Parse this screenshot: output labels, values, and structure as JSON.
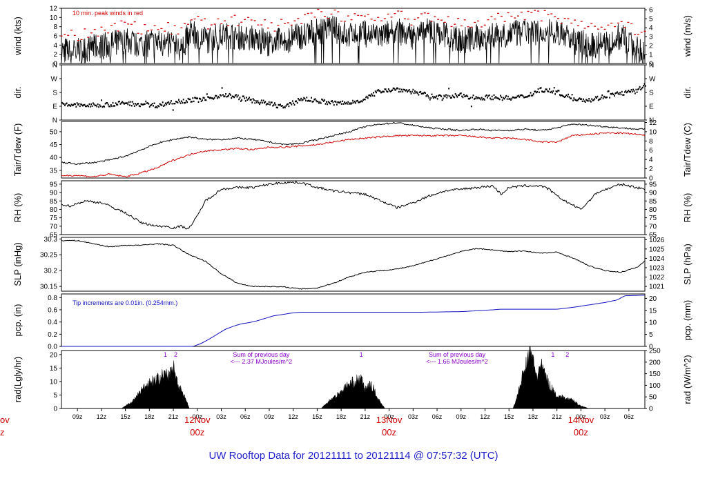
{
  "title": "UW Rooftop Data for 20121111  to  20121114 @ 07:57:32  (UTC)",
  "colors": {
    "text": "#000000",
    "red": "#d00000",
    "blue": "#1010c0",
    "purple": "#8a00c8",
    "title": "#2222cc"
  },
  "x_axis": {
    "unit": "hours since 2012-11-11 07:00Z",
    "range": [
      0,
      73
    ],
    "ticks": [
      {
        "h": 2,
        "label": "09z"
      },
      {
        "h": 5,
        "label": "12z"
      },
      {
        "h": 8,
        "label": "15z"
      },
      {
        "h": 11,
        "label": "18z"
      },
      {
        "h": 14,
        "label": "21z"
      },
      {
        "h": 17,
        "label": "00z"
      },
      {
        "h": 20,
        "label": "03z"
      },
      {
        "h": 23,
        "label": "06z"
      },
      {
        "h": 26,
        "label": "09z"
      },
      {
        "h": 29,
        "label": "12z"
      },
      {
        "h": 32,
        "label": "15z"
      },
      {
        "h": 35,
        "label": "18z"
      },
      {
        "h": 38,
        "label": "21z"
      },
      {
        "h": 41,
        "label": "00z"
      },
      {
        "h": 44,
        "label": "03z"
      },
      {
        "h": 47,
        "label": "06z"
      },
      {
        "h": 50,
        "label": "09z"
      },
      {
        "h": 53,
        "label": "12z"
      },
      {
        "h": 56,
        "label": "15z"
      },
      {
        "h": 59,
        "label": "18z"
      },
      {
        "h": 62,
        "label": "21z"
      },
      {
        "h": 65,
        "label": "00z"
      },
      {
        "h": 68,
        "label": "03z"
      },
      {
        "h": 71,
        "label": "06z"
      }
    ],
    "day_labels": [
      {
        "h": 17,
        "date": "12Nov",
        "time": "00z"
      },
      {
        "h": 41,
        "date": "13Nov",
        "time": "00z"
      },
      {
        "h": 65,
        "date": "14Nov",
        "time": "00z"
      }
    ],
    "edge_label": {
      "date": "ov",
      "time": "z"
    }
  },
  "chart_data": [
    {
      "type": "line",
      "name": "wind",
      "ylabel_left": "wind (kts)",
      "ylabel_right": "wind (m/s)",
      "ylim": [
        0,
        12
      ],
      "left_ticks": [
        0,
        2,
        4,
        6,
        8,
        10,
        12
      ],
      "right_ticks": [
        0,
        1,
        2,
        3,
        4,
        5,
        6
      ],
      "right_factor": 0.5144,
      "annotation": "10 min. peak winds in red",
      "knots_x": [
        0,
        2,
        4,
        6,
        8,
        10,
        12,
        14,
        15,
        16,
        17,
        18,
        20,
        22,
        24,
        26,
        28,
        30,
        32,
        34,
        36,
        38,
        40,
        42,
        44,
        46,
        48,
        50,
        52,
        54,
        56,
        58,
        60,
        62,
        64,
        66,
        68,
        70,
        72,
        73
      ],
      "knots_y": [
        3,
        2.5,
        3.5,
        4,
        5,
        4,
        4.5,
        4,
        3,
        6.5,
        6,
        5,
        6,
        6,
        5.5,
        4.5,
        5,
        6,
        7,
        7.5,
        6,
        6.5,
        6,
        7,
        6,
        7,
        6,
        5,
        5.5,
        6,
        6.5,
        6.5,
        7,
        7,
        5,
        4,
        4,
        6,
        3,
        2.5
      ],
      "peak_over_mean": 3
    },
    {
      "type": "scatter",
      "name": "dir",
      "ylabel_left": "dir.",
      "ylabel_right": "dir.",
      "ylim": [
        0,
        360
      ],
      "tick_values": [
        0,
        90,
        180,
        270,
        360
      ],
      "tick_labels": [
        "N",
        "E",
        "S",
        "W",
        "N"
      ],
      "knots_x": [
        0,
        4,
        8,
        12,
        14,
        16,
        18,
        20,
        22,
        24,
        26,
        28,
        30,
        32,
        34,
        36,
        38,
        40,
        42,
        44,
        46,
        48,
        50,
        52,
        54,
        56,
        58,
        60,
        62,
        64,
        66,
        68,
        70,
        72,
        73
      ],
      "knots_y": [
        100,
        95,
        110,
        95,
        120,
        130,
        135,
        165,
        150,
        125,
        105,
        85,
        140,
        125,
        110,
        110,
        140,
        195,
        200,
        185,
        155,
        150,
        160,
        145,
        150,
        140,
        155,
        200,
        180,
        140,
        130,
        155,
        175,
        190,
        230
      ]
    },
    {
      "type": "line",
      "name": "temperature",
      "ylabel_left": "Tair/Tdew (F)",
      "ylabel_right": "Tair/Tdew (C)",
      "ylim": [
        32,
        54
      ],
      "left_ticks": [
        35,
        40,
        45,
        50
      ],
      "right_ticks": [
        0,
        2,
        4,
        6,
        8,
        10,
        12
      ],
      "series": [
        {
          "name": "Tair",
          "x": [
            0,
            2,
            4,
            6,
            8,
            10,
            12,
            14,
            16,
            17,
            18,
            20,
            22,
            24,
            26,
            28,
            30,
            32,
            34,
            36,
            38,
            40,
            42,
            44,
            46,
            48,
            50,
            52,
            54,
            56,
            58,
            60,
            62,
            64,
            66,
            68,
            70,
            72,
            73
          ],
          "y": [
            38,
            37.5,
            38,
            39,
            40.5,
            43,
            45.5,
            47,
            48,
            47.5,
            47,
            47,
            47.5,
            47,
            46,
            45,
            45.5,
            47,
            48.5,
            50,
            52,
            53,
            53.5,
            52.5,
            51.5,
            51,
            50.5,
            51,
            50.5,
            50.5,
            51,
            50.5,
            51.5,
            53,
            52.5,
            52,
            51.5,
            51,
            51
          ]
        },
        {
          "name": "Tdew",
          "x": [
            0,
            2,
            4,
            6,
            8,
            10,
            12,
            14,
            16,
            17,
            18,
            20,
            22,
            24,
            26,
            28,
            30,
            32,
            34,
            36,
            38,
            40,
            42,
            44,
            46,
            48,
            50,
            52,
            54,
            56,
            58,
            60,
            62,
            64,
            66,
            68,
            70,
            72,
            73
          ],
          "y": [
            33,
            33,
            32.5,
            33.5,
            32.5,
            34,
            36,
            39,
            41,
            42,
            42.5,
            43,
            43.5,
            43,
            44,
            44,
            44.5,
            45,
            46,
            47,
            47.5,
            48,
            48.5,
            48.5,
            48.5,
            48.5,
            48.5,
            48,
            47.5,
            47.5,
            47,
            46,
            46,
            48.5,
            49,
            49.5,
            49.5,
            49,
            48.5
          ]
        }
      ]
    },
    {
      "type": "line",
      "name": "rh",
      "ylabel_left": "RH (%)",
      "ylabel_right": "RH (%)",
      "ylim": [
        65,
        97
      ],
      "left_ticks": [
        65,
        70,
        75,
        80,
        85,
        90,
        95
      ],
      "x": [
        0,
        1,
        3,
        5,
        6,
        8,
        10,
        11,
        12,
        13,
        14,
        15,
        15.5,
        16,
        17,
        18,
        20,
        22,
        24,
        26,
        28,
        30,
        32,
        34,
        36,
        38,
        40,
        42,
        44,
        46,
        48,
        50,
        52,
        54,
        55,
        56,
        58,
        60,
        61,
        62,
        63,
        65,
        67,
        70,
        73
      ],
      "y": [
        83,
        82,
        85,
        84,
        82,
        78,
        72,
        71,
        70,
        70,
        69,
        70,
        69,
        69,
        76,
        85,
        92,
        93,
        93,
        95,
        96,
        96,
        93,
        91,
        90,
        89,
        85,
        81,
        84,
        88,
        91,
        92,
        93,
        94,
        89,
        93,
        94,
        94,
        92,
        88,
        85,
        80,
        90,
        95,
        92
      ]
    },
    {
      "type": "line",
      "name": "slp",
      "ylabel_left": "SLP (inHg)",
      "ylabel_right": "SLP (hPa)",
      "ylim": [
        30.135,
        30.305
      ],
      "left_ticks": [
        30.15,
        30.2,
        30.25,
        30.3
      ],
      "right_ticks": [
        1021,
        1022,
        1023,
        1024,
        1025,
        1026
      ],
      "x": [
        0,
        2,
        4,
        6,
        8,
        10,
        12,
        14,
        16,
        18,
        20,
        22,
        24,
        26,
        28,
        30,
        32,
        34,
        36,
        38,
        40,
        42,
        44,
        46,
        48,
        50,
        52,
        54,
        56,
        58,
        60,
        62,
        64,
        66,
        68,
        70,
        72,
        73
      ],
      "y": [
        30.295,
        30.295,
        30.285,
        30.275,
        30.28,
        30.28,
        30.285,
        30.28,
        30.25,
        30.23,
        30.19,
        30.16,
        30.15,
        30.15,
        30.148,
        30.142,
        30.145,
        30.16,
        30.18,
        30.195,
        30.2,
        30.205,
        30.215,
        30.23,
        30.245,
        30.26,
        30.27,
        30.265,
        30.26,
        30.262,
        30.255,
        30.258,
        30.24,
        30.215,
        30.2,
        30.195,
        30.21,
        30.23
      ]
    },
    {
      "type": "line",
      "name": "pcp",
      "ylabel_left": "pcp. (in)",
      "ylabel_right": "pcp. (mm)",
      "ylim": [
        0,
        0.86
      ],
      "left_ticks": [
        0.0,
        0.2,
        0.4,
        0.6,
        0.8
      ],
      "left_tick_labels": [
        "0.0",
        "0.2",
        "0.4",
        "0.6",
        "0.8"
      ],
      "right_ticks": [
        0,
        5,
        10,
        15,
        20
      ],
      "annotation": "Tip increments are 0.01in. (0.254mm.)",
      "x": [
        0,
        16.5,
        17.5,
        18.5,
        19.5,
        20.5,
        21.5,
        22.5,
        23.5,
        24.5,
        25.5,
        26.5,
        27.5,
        29,
        30,
        31,
        33,
        40,
        45,
        50,
        54,
        55,
        58,
        61,
        62,
        64,
        66,
        68,
        69.5,
        70.5,
        73
      ],
      "y": [
        0,
        0,
        0.05,
        0.12,
        0.2,
        0.28,
        0.33,
        0.37,
        0.39,
        0.42,
        0.46,
        0.5,
        0.52,
        0.55,
        0.56,
        0.56,
        0.56,
        0.56,
        0.56,
        0.57,
        0.6,
        0.61,
        0.61,
        0.61,
        0.61,
        0.64,
        0.68,
        0.72,
        0.76,
        0.83,
        0.84
      ]
    },
    {
      "type": "area",
      "name": "rad",
      "ylabel_left": "rad(Lgly/hr)",
      "ylabel_right": "rad (W/m^2)",
      "ylim": [
        0,
        21.5
      ],
      "left_ticks": [
        0,
        5,
        10,
        15,
        20
      ],
      "right_ticks": [
        0,
        50,
        100,
        150,
        200,
        250
      ],
      "right_factor": 11.63,
      "markers": [
        {
          "h": 13,
          "label": "1"
        },
        {
          "h": 14.3,
          "label": "2"
        },
        {
          "h": 37.5,
          "label": "1"
        },
        {
          "h": 61.5,
          "label": "1"
        },
        {
          "h": 63.3,
          "label": "2"
        }
      ],
      "notes": [
        {
          "h": 25,
          "line1": "Sum of previous day",
          "line2": "<--- 2.37 MJoules/m^2"
        },
        {
          "h": 49.5,
          "line1": "Sum of previous day",
          "line2": "<--- 1.66 MJoules/m^2"
        }
      ],
      "days": [
        {
          "x": [
            7.5,
            9,
            10,
            11,
            12,
            13,
            13.5,
            14,
            14.5,
            15,
            15.5,
            16
          ],
          "y": [
            0,
            3,
            7,
            10,
            11,
            13,
            12,
            16,
            10,
            7,
            4,
            0
          ]
        },
        {
          "x": [
            32.5,
            33.5,
            34.5,
            35.5,
            36.5,
            37.5,
            38,
            38.5,
            39,
            39.5,
            40,
            40.5
          ],
          "y": [
            0,
            3,
            5,
            8,
            10,
            11,
            7,
            9,
            8,
            4,
            2,
            0
          ]
        },
        {
          "x": [
            56.5,
            57,
            57.5,
            58,
            58.5,
            59,
            59.5,
            60,
            60.5,
            61,
            61.5,
            62,
            63,
            64,
            65,
            66
          ],
          "y": [
            0,
            4,
            10,
            15,
            20,
            19,
            12,
            16,
            13,
            9,
            7,
            5,
            4,
            3,
            1,
            0
          ]
        }
      ]
    }
  ]
}
